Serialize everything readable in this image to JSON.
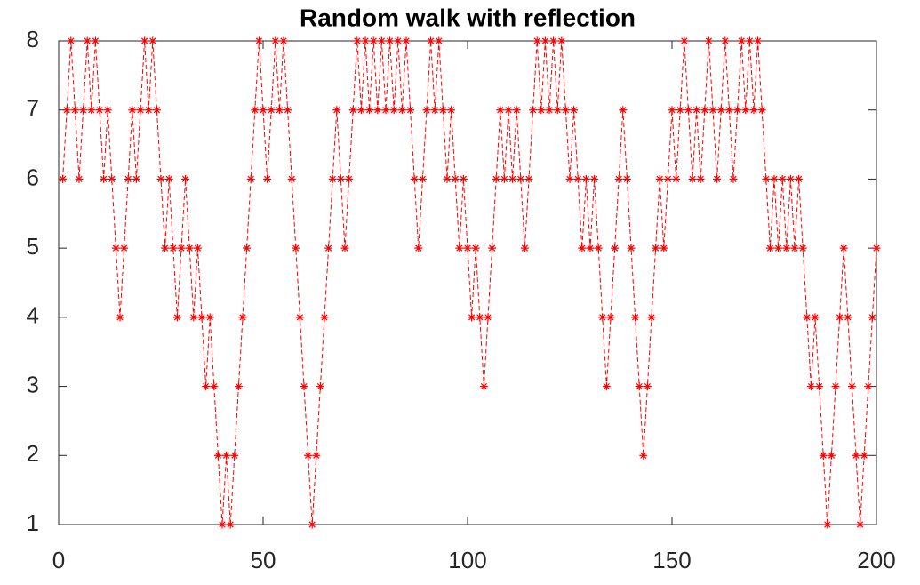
{
  "chart_data": {
    "type": "line",
    "title": "Random walk with reflection",
    "x": [
      1,
      2,
      3,
      4,
      5,
      6,
      7,
      8,
      9,
      10,
      11,
      12,
      13,
      14,
      15,
      16,
      17,
      18,
      19,
      20,
      21,
      22,
      23,
      24,
      25,
      26,
      27,
      28,
      29,
      30,
      31,
      32,
      33,
      34,
      35,
      36,
      37,
      38,
      39,
      40,
      41,
      42,
      43,
      44,
      45,
      46,
      47,
      48,
      49,
      50,
      51,
      52,
      53,
      54,
      55,
      56,
      57,
      58,
      59,
      60,
      61,
      62,
      63,
      64,
      65,
      66,
      67,
      68,
      69,
      70,
      71,
      72,
      73,
      74,
      75,
      76,
      77,
      78,
      79,
      80,
      81,
      82,
      83,
      84,
      85,
      86,
      87,
      88,
      89,
      90,
      91,
      92,
      93,
      94,
      95,
      96,
      97,
      98,
      99,
      100,
      101,
      102,
      103,
      104,
      105,
      106,
      107,
      108,
      109,
      110,
      111,
      112,
      113,
      114,
      115,
      116,
      117,
      118,
      119,
      120,
      121,
      122,
      123,
      124,
      125,
      126,
      127,
      128,
      129,
      130,
      131,
      132,
      133,
      134,
      135,
      136,
      137,
      138,
      139,
      140,
      141,
      142,
      143,
      144,
      145,
      146,
      147,
      148,
      149,
      150,
      151,
      152,
      153,
      154,
      155,
      156,
      157,
      158,
      159,
      160,
      161,
      162,
      163,
      164,
      165,
      166,
      167,
      168,
      169,
      170,
      171,
      172,
      173,
      174,
      175,
      176,
      177,
      178,
      179,
      180,
      181,
      182,
      183,
      184,
      185,
      186,
      187,
      188,
      189,
      190,
      191,
      192,
      193,
      194,
      195,
      196,
      197,
      198,
      199,
      200
    ],
    "values": [
      6,
      7,
      8,
      7,
      6,
      7,
      8,
      7,
      8,
      7,
      6,
      7,
      6,
      5,
      4,
      5,
      6,
      7,
      6,
      7,
      8,
      7,
      8,
      7,
      6,
      5,
      6,
      5,
      4,
      5,
      6,
      5,
      4,
      5,
      4,
      3,
      4,
      3,
      2,
      1,
      2,
      1,
      2,
      3,
      4,
      5,
      6,
      7,
      8,
      7,
      6,
      7,
      8,
      7,
      8,
      7,
      6,
      5,
      4,
      3,
      2,
      1,
      2,
      3,
      4,
      5,
      6,
      7,
      6,
      5,
      6,
      7,
      8,
      7,
      8,
      7,
      8,
      7,
      8,
      7,
      8,
      7,
      8,
      7,
      8,
      7,
      6,
      5,
      6,
      7,
      8,
      7,
      8,
      7,
      6,
      7,
      6,
      5,
      6,
      5,
      4,
      5,
      4,
      3,
      4,
      5,
      6,
      7,
      6,
      7,
      6,
      7,
      6,
      5,
      6,
      7,
      8,
      7,
      8,
      7,
      8,
      7,
      8,
      7,
      6,
      7,
      6,
      5,
      6,
      5,
      6,
      5,
      4,
      3,
      4,
      5,
      6,
      7,
      6,
      5,
      4,
      3,
      2,
      3,
      4,
      5,
      6,
      5,
      6,
      7,
      6,
      7,
      8,
      7,
      6,
      7,
      6,
      7,
      8,
      7,
      6,
      7,
      8,
      7,
      6,
      7,
      8,
      7,
      8,
      7,
      8,
      7,
      6,
      5,
      6,
      5,
      6,
      5,
      6,
      5,
      6,
      5,
      4,
      3,
      4,
      3,
      2,
      1,
      2,
      3,
      4,
      5,
      4,
      3,
      2,
      1,
      2,
      3,
      4,
      5
    ],
    "color": "#ff0000",
    "line_style": "dashed",
    "xlim": [
      0,
      200
    ],
    "xticks": [
      0,
      50,
      100,
      150,
      200
    ],
    "ylim": [
      1,
      8
    ],
    "yticks": [
      1,
      2,
      3,
      4,
      5,
      6,
      7,
      8
    ]
  }
}
